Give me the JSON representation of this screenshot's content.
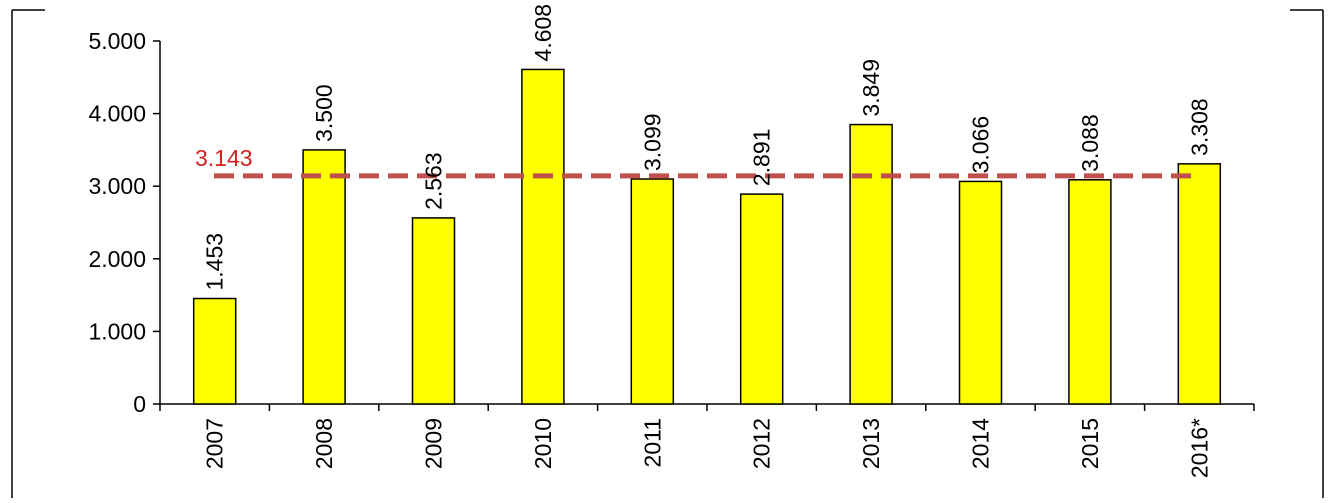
{
  "chart_data": {
    "type": "bar",
    "categories": [
      "2007",
      "2008",
      "2009",
      "2010",
      "2011",
      "2012",
      "2013",
      "2014",
      "2015",
      "2016*"
    ],
    "values": [
      1453,
      3500,
      2563,
      4608,
      3099,
      2891,
      3849,
      3066,
      3088,
      3308
    ],
    "value_labels": [
      "1.453",
      "3.500",
      "2.563",
      "4.608",
      "3.099",
      "2.891",
      "3.849",
      "3.066",
      "3.088",
      "3.308"
    ],
    "ylim": [
      0,
      5000
    ],
    "yticks": [
      0,
      1000,
      2000,
      3000,
      4000,
      5000
    ],
    "ytick_labels": [
      "0",
      "1.000",
      "2.000",
      "3.000",
      "4.000",
      "5.000"
    ],
    "reference_line": {
      "value": 3143,
      "label": "3.143",
      "color": "#c0504d",
      "style": "dashed"
    },
    "bar_color": "#ffff00",
    "bar_edge_color": "#000000",
    "grid": false,
    "legend": "none"
  }
}
